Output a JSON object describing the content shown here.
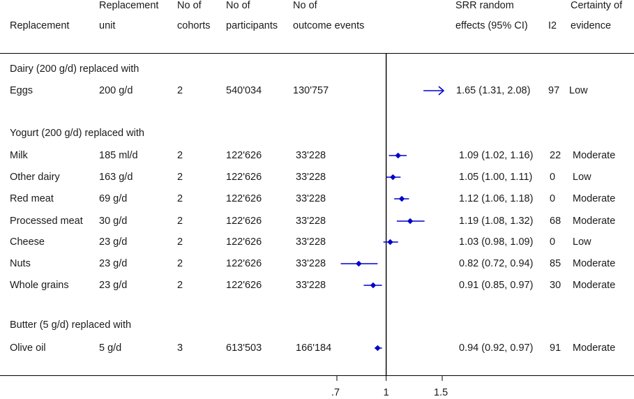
{
  "headers": {
    "replacement": [
      "",
      "Replacement"
    ],
    "unit": [
      "Replacement",
      "unit"
    ],
    "cohorts": [
      "No of",
      "cohorts"
    ],
    "participants": [
      "No of",
      "participants"
    ],
    "events": [
      "No of",
      "outcome events"
    ],
    "srr": [
      "SRR random",
      "effects (95% CI)"
    ],
    "i2": [
      "",
      "I2"
    ],
    "certainty": [
      "Certainty of",
      "evidence"
    ]
  },
  "sections": [
    {
      "title": "Dairy (200 g/d) replaced with"
    },
    {
      "title": "Yogurt (200 g/d) replaced with"
    },
    {
      "title": "Butter (5 g/d) replaced with"
    }
  ],
  "rows": [
    {
      "replacement": "Eggs",
      "unit": "200 g/d",
      "cohorts": "2",
      "participants": "540'034",
      "events": "130'757",
      "srr_text": "1.65 (1.31, 2.08)",
      "i2": "97",
      "certainty": "Low"
    },
    {
      "replacement": "Milk",
      "unit": "185 ml/d",
      "cohorts": "2",
      "participants": "122'626",
      "events": "33'228",
      "srr_text": "1.09 (1.02, 1.16)",
      "i2": "22",
      "certainty": "Moderate"
    },
    {
      "replacement": "Other dairy",
      "unit": "163 g/d",
      "cohorts": "2",
      "participants": "122'626",
      "events": "33'228",
      "srr_text": "1.05 (1.00, 1.11)",
      "i2": "0",
      "certainty": "Low"
    },
    {
      "replacement": "Red meat",
      "unit": "69 g/d",
      "cohorts": "2",
      "participants": "122'626",
      "events": "33'228",
      "srr_text": "1.12 (1.06, 1.18)",
      "i2": "0",
      "certainty": "Moderate"
    },
    {
      "replacement": "Processed meat",
      "unit": "30 g/d",
      "cohorts": "2",
      "participants": "122'626",
      "events": "33'228",
      "srr_text": "1.19 (1.08, 1.32)",
      "i2": "68",
      "certainty": "Moderate"
    },
    {
      "replacement": "Cheese",
      "unit": "23 g/d",
      "cohorts": "2",
      "participants": "122'626",
      "events": "33'228",
      "srr_text": "1.03 (0.98, 1.09)",
      "i2": "0",
      "certainty": "Low"
    },
    {
      "replacement": "Nuts",
      "unit": "23 g/d",
      "cohorts": "2",
      "participants": "122'626",
      "events": "33'228",
      "srr_text": "0.82 (0.72, 0.94)",
      "i2": "85",
      "certainty": "Moderate"
    },
    {
      "replacement": "Whole grains",
      "unit": "23 g/d",
      "cohorts": "2",
      "participants": "122'626",
      "events": "33'228",
      "srr_text": "0.91 (0.85, 0.97)",
      "i2": "30",
      "certainty": "Moderate"
    },
    {
      "replacement": "Olive oil",
      "unit": "5 g/d",
      "cohorts": "3",
      "participants": "613'503",
      "events": "166'184",
      "srr_text": "0.94 (0.92, 0.97)",
      "i2": "91",
      "certainty": "Moderate"
    }
  ],
  "chart_data": {
    "type": "forest",
    "reference_line": 1,
    "x_ticks": [
      ".7",
      "1",
      "1.5"
    ],
    "x_tick_values": [
      0.7,
      1,
      1.5
    ],
    "xlim": [
      0.7,
      1.5
    ],
    "marker_color": "#0000cc",
    "points": [
      {
        "label": "Eggs",
        "srr": 1.65,
        "lower": 1.31,
        "upper": 2.08,
        "truncated_right": true
      },
      {
        "label": "Milk",
        "srr": 1.09,
        "lower": 1.02,
        "upper": 1.16
      },
      {
        "label": "Other dairy",
        "srr": 1.05,
        "lower": 1.0,
        "upper": 1.11
      },
      {
        "label": "Red meat",
        "srr": 1.12,
        "lower": 1.06,
        "upper": 1.18
      },
      {
        "label": "Processed meat",
        "srr": 1.19,
        "lower": 1.08,
        "upper": 1.32
      },
      {
        "label": "Cheese",
        "srr": 1.03,
        "lower": 0.98,
        "upper": 1.09
      },
      {
        "label": "Nuts",
        "srr": 0.82,
        "lower": 0.72,
        "upper": 0.94
      },
      {
        "label": "Whole grains",
        "srr": 0.91,
        "lower": 0.85,
        "upper": 0.97
      },
      {
        "label": "Olive oil",
        "srr": 0.94,
        "lower": 0.92,
        "upper": 0.97
      }
    ]
  }
}
